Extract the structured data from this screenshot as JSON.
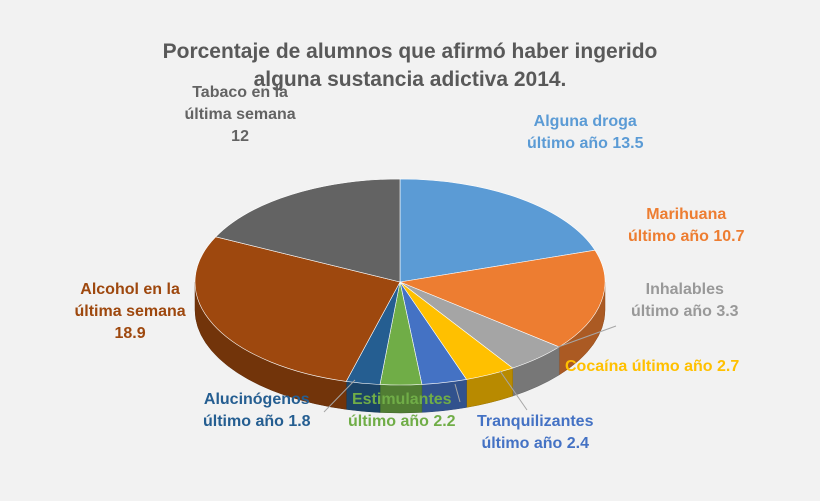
{
  "chart_data": {
    "type": "pie",
    "title_lines": [
      "Porcentaje de alumnos que afirmó haber ingerido",
      "alguna sustancia adictiva 2014."
    ],
    "series": [
      {
        "name": "Alguna droga",
        "label_lines": [
          "Alguna droga",
          "último año 13.5"
        ],
        "value": 13.5,
        "color": "#5b9bd5"
      },
      {
        "name": "Marihuana",
        "label_lines": [
          "Marihuana",
          "último año 10.7"
        ],
        "value": 10.7,
        "color": "#ed7d31"
      },
      {
        "name": "Inhalables",
        "label_lines": [
          "Inhalables",
          "último año 3.3"
        ],
        "value": 3.3,
        "color": "#a5a5a5"
      },
      {
        "name": "Cocaína",
        "label_lines": [
          "Cocaína último año 2.7"
        ],
        "value": 2.7,
        "color": "#ffc000"
      },
      {
        "name": "Tranquilizantes",
        "label_lines": [
          "Tranquilizantes",
          "último año 2.4"
        ],
        "value": 2.4,
        "color": "#4472c4"
      },
      {
        "name": "Estimulantes",
        "label_lines": [
          "Estimulantes",
          "último año 2.2"
        ],
        "value": 2.2,
        "color": "#70ad47"
      },
      {
        "name": "Alucinógenos",
        "label_lines": [
          "Alucinógenos",
          "último año 1.8"
        ],
        "value": 1.8,
        "color": "#255e91"
      },
      {
        "name": "Alcohol",
        "label_lines": [
          "Alcohol en la",
          "última semana",
          "18.9"
        ],
        "value": 18.9,
        "color": "#9e480e"
      },
      {
        "name": "Tabaco",
        "label_lines": [
          "Tabaco en la",
          "última semana",
          "12"
        ],
        "value": 12,
        "color": "#636363"
      }
    ],
    "legend": "none",
    "style": "3d-pie"
  }
}
